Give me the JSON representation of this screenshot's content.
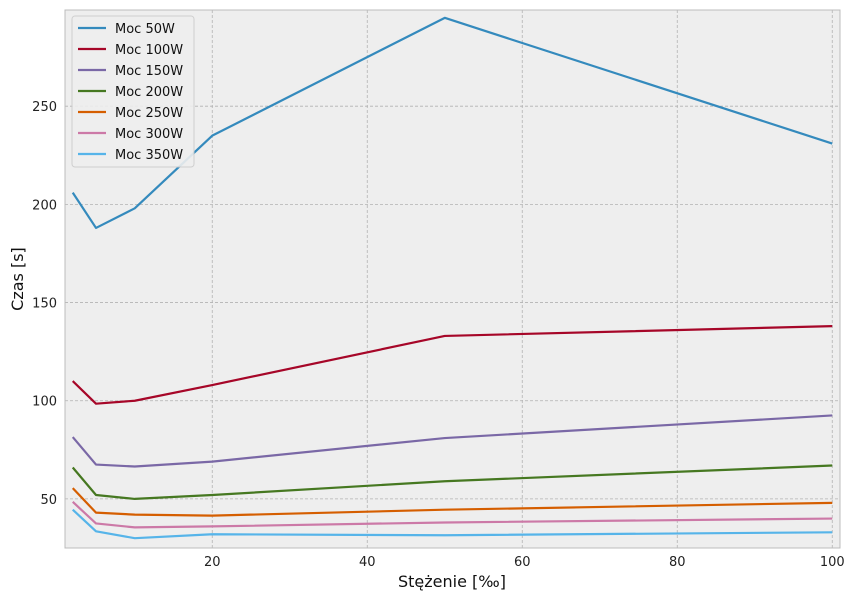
{
  "chart_data": {
    "type": "line",
    "xlabel": "Stężenie [‰]",
    "ylabel": "Czas [s]",
    "xlim": [
      1,
      101
    ],
    "ylim": [
      25,
      299
    ],
    "x_ticks": [
      20,
      40,
      60,
      80,
      100
    ],
    "y_ticks": [
      50,
      100,
      150,
      200,
      250
    ],
    "grid": true,
    "legend_position": "top-left",
    "x": [
      2,
      5,
      10,
      20,
      50,
      100
    ],
    "series": [
      {
        "name": "Moc 50W",
        "color": "#348ABD",
        "values": [
          206,
          188,
          198,
          235,
          295,
          231
        ]
      },
      {
        "name": "Moc 100W",
        "color": "#A60628",
        "values": [
          110,
          98.5,
          100,
          108,
          133,
          138
        ]
      },
      {
        "name": "Moc 150W",
        "color": "#7A68A6",
        "values": [
          81.5,
          67.5,
          66.5,
          69,
          81,
          92.5
        ]
      },
      {
        "name": "Moc 200W",
        "color": "#467821",
        "values": [
          66,
          52,
          50,
          52,
          59,
          67
        ]
      },
      {
        "name": "Moc 250W",
        "color": "#D55E00",
        "values": [
          55.5,
          43,
          42,
          41.5,
          44.5,
          48
        ]
      },
      {
        "name": "Moc 300W",
        "color": "#CC79A7",
        "values": [
          48.5,
          37.5,
          35.5,
          36,
          38,
          40
        ]
      },
      {
        "name": "Moc 350W",
        "color": "#56B4E9",
        "values": [
          44.5,
          33.5,
          30,
          32,
          31.5,
          33
        ]
      }
    ]
  }
}
